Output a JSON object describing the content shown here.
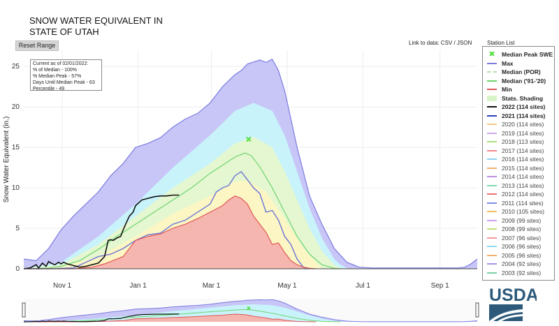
{
  "title": {
    "line1": "SNOW WATER EQUIVALENT IN",
    "line2": "STATE OF UTAH"
  },
  "controls": {
    "reset_label": "Reset Range",
    "link_label": "Link to data: CSV / JSON",
    "station_list_label": "Station List"
  },
  "info": {
    "line1": "Current as of 02/01/2022:",
    "line2": "% of Median - 100%",
    "line3": "% Median Peak - 57%",
    "line4": "Days Until Median Peak - 63",
    "line5": "Percentile - 49"
  },
  "logo": {
    "text": "USDA"
  },
  "colors": {
    "max": "#7b7be0",
    "max_fill": "#c8c6f7",
    "median": "#6fd46f",
    "median_por": "#aee0ae",
    "min": "#e05757",
    "min_fill": "#f6b6b0",
    "y2022": "#111111",
    "y2021": "#2b3fb8",
    "peak_marker": "#55dd44",
    "cyan_fill": "#c9f3fb",
    "green_fill": "#e4f7d0",
    "yellow_fill": "#fcf6c4"
  },
  "legend": [
    {
      "label": "Median Peak SWE",
      "color": "#55dd44",
      "kind": "marker"
    },
    {
      "label": "Max",
      "color": "#7b7be0",
      "kind": "line"
    },
    {
      "label": "Median (POR)",
      "color": "#aee0ae",
      "kind": "dash"
    },
    {
      "label": "Median ('91-'20)",
      "color": "#6fd46f",
      "kind": "line"
    },
    {
      "label": "Min",
      "color": "#e05757",
      "kind": "line"
    },
    {
      "label": "Stats. Shading",
      "color": "#d8f3c8",
      "kind": "band"
    },
    {
      "label": "2022 (114 sites)",
      "color": "#111111",
      "kind": "line"
    },
    {
      "label": "2021 (114 sites)",
      "color": "#2b3fb8",
      "kind": "line"
    },
    {
      "label": "2020 (114 sites)",
      "color": "#f5c78a",
      "kind": "line"
    },
    {
      "label": "2019 (114 sites)",
      "color": "#c8a6e8",
      "kind": "line"
    },
    {
      "label": "2018 (113 sites)",
      "color": "#a8e07a",
      "kind": "line"
    },
    {
      "label": "2017 (114 sites)",
      "color": "#f08a8a",
      "kind": "line"
    },
    {
      "label": "2016 (114 sites)",
      "color": "#8ed0f0",
      "kind": "line"
    },
    {
      "label": "2015 (114 sites)",
      "color": "#f2b06a",
      "kind": "line"
    },
    {
      "label": "2014 (114 sites)",
      "color": "#b98ee0",
      "kind": "line"
    },
    {
      "label": "2013 (114 sites)",
      "color": "#7ed6b0",
      "kind": "line"
    },
    {
      "label": "2012 (114 sites)",
      "color": "#e87070",
      "kind": "line"
    },
    {
      "label": "2011 (114 sites)",
      "color": "#7a8ee0",
      "kind": "line"
    },
    {
      "label": "2010 (105 sites)",
      "color": "#f0c060",
      "kind": "line"
    },
    {
      "label": "2009 (99 sites)",
      "color": "#d0a0f0",
      "kind": "line"
    },
    {
      "label": "2008 (99 sites)",
      "color": "#c0e070",
      "kind": "line"
    },
    {
      "label": "2007 (96 sites)",
      "color": "#f29a9a",
      "kind": "line"
    },
    {
      "label": "2006 (96 sites)",
      "color": "#8fdaf2",
      "kind": "line"
    },
    {
      "label": "2005 (96 sites)",
      "color": "#f0b070",
      "kind": "line"
    },
    {
      "label": "2004 (92 sites)",
      "color": "#a890e8",
      "kind": "line"
    },
    {
      "label": "2003 (92 sites)",
      "color": "#7cd0a8",
      "kind": "line"
    }
  ],
  "chart_data": {
    "type": "area",
    "title": "SNOW WATER EQUIVALENT IN STATE OF UTAH",
    "xlabel": "",
    "ylabel": "Snow Water Equivalent (in.)",
    "x_unit": "days since Oct 1",
    "xlim": [
      0,
      365
    ],
    "ylim": [
      0,
      27
    ],
    "yticks": [
      0,
      5,
      10,
      15,
      20,
      25
    ],
    "xticks": [
      {
        "x": 31,
        "label": "Nov 1"
      },
      {
        "x": 92,
        "label": "Jan 1"
      },
      {
        "x": 151,
        "label": "Mar 1"
      },
      {
        "x": 212,
        "label": "May 1"
      },
      {
        "x": 273,
        "label": "Jul 1"
      },
      {
        "x": 335,
        "label": "Sep 1"
      }
    ],
    "median_peak": {
      "x": 181,
      "y": 16
    },
    "series": [
      {
        "name": "Max",
        "x": [
          0,
          10,
          20,
          30,
          40,
          50,
          60,
          70,
          80,
          90,
          100,
          110,
          120,
          130,
          140,
          150,
          160,
          170,
          175,
          180,
          190,
          195,
          200,
          205,
          210,
          215,
          220,
          225,
          230,
          240,
          250,
          260,
          270,
          280,
          290,
          300,
          330,
          350,
          355,
          360,
          365
        ],
        "y": [
          1.2,
          1.0,
          2.5,
          4.8,
          6.5,
          8.0,
          9.5,
          11.5,
          13.0,
          15.0,
          15.5,
          16.2,
          17.5,
          18.5,
          19.2,
          20.5,
          22.5,
          24.0,
          24.5,
          25.3,
          25.8,
          25.5,
          25.9,
          24.5,
          22.0,
          18.5,
          15.0,
          12.0,
          9.0,
          5.5,
          2.5,
          0.8,
          0.2,
          0.1,
          0.1,
          0.1,
          0.1,
          0.1,
          0.2,
          0.6,
          1.2
        ]
      },
      {
        "name": "Stats 90th",
        "x": [
          0,
          30,
          60,
          90,
          120,
          150,
          170,
          185,
          200,
          210,
          220,
          230,
          240,
          250,
          255,
          260
        ],
        "y": [
          0.1,
          0.8,
          4.0,
          8.0,
          12.5,
          16.5,
          19.5,
          20.5,
          19.5,
          16.5,
          12.0,
          7.5,
          3.8,
          1.2,
          0.5,
          0.1
        ]
      },
      {
        "name": "Stats 70th",
        "x": [
          0,
          30,
          60,
          90,
          120,
          150,
          170,
          185,
          200,
          210,
          220,
          230,
          240,
          250,
          255
        ],
        "y": [
          0.05,
          0.5,
          3.0,
          6.5,
          10.0,
          13.0,
          15.5,
          16.3,
          15.0,
          12.0,
          8.5,
          5.0,
          2.2,
          0.5,
          0.1
        ]
      },
      {
        "name": "Median ('91-'20)",
        "x": [
          0,
          20,
          30,
          45,
          60,
          75,
          90,
          105,
          120,
          135,
          150,
          160,
          170,
          178,
          183,
          190,
          200,
          210,
          220,
          230,
          240,
          250,
          255
        ],
        "y": [
          0,
          0.1,
          0.3,
          1.0,
          2.4,
          4.0,
          5.5,
          7.0,
          8.5,
          10.0,
          11.8,
          12.8,
          13.8,
          14.3,
          14.0,
          12.6,
          10.0,
          7.0,
          4.0,
          1.8,
          0.5,
          0.05,
          0
        ]
      },
      {
        "name": "Stats 30th",
        "x": [
          0,
          30,
          60,
          90,
          120,
          150,
          170,
          180,
          195,
          210,
          225,
          240
        ],
        "y": [
          0,
          0.2,
          1.5,
          4.0,
          6.8,
          9.0,
          10.8,
          10.9,
          9.5,
          6.2,
          2.5,
          0
        ]
      },
      {
        "name": "2021 (114 sites)",
        "x": [
          0,
          20,
          40,
          60,
          70,
          80,
          90,
          100,
          110,
          120,
          130,
          140,
          150,
          155,
          160,
          165,
          170,
          175,
          180,
          185,
          190,
          195,
          200,
          205,
          210,
          215,
          220,
          225,
          228
        ],
        "y": [
          0,
          0,
          0.1,
          1.5,
          1.8,
          2.5,
          3.5,
          4.2,
          4.4,
          5.5,
          6.0,
          7.0,
          8.0,
          9.5,
          10.0,
          10.3,
          11.5,
          12.0,
          11.0,
          10.0,
          9.3,
          7.0,
          7.2,
          6.0,
          4.0,
          3.0,
          1.2,
          0.2,
          0
        ]
      },
      {
        "name": "Min",
        "x": [
          0,
          40,
          55,
          65,
          80,
          90,
          100,
          110,
          120,
          130,
          140,
          150,
          160,
          165,
          170,
          175,
          180,
          185,
          190,
          195,
          200,
          205,
          210,
          215,
          220,
          225,
          230,
          235
        ],
        "y": [
          0,
          0,
          0.2,
          0.6,
          1.5,
          3.5,
          4.0,
          4.3,
          5.0,
          5.5,
          6.2,
          7.0,
          7.8,
          8.5,
          9.0,
          8.7,
          8.0,
          6.5,
          5.5,
          4.5,
          3.0,
          3.2,
          2.0,
          1.0,
          0.5,
          0.2,
          0.05,
          0
        ]
      },
      {
        "name": "2022 (114 sites)",
        "x": [
          0,
          5,
          10,
          12,
          15,
          18,
          20,
          22,
          25,
          28,
          30,
          32,
          35,
          40,
          45,
          50,
          55,
          60,
          65,
          68,
          70,
          72,
          75,
          78,
          80,
          82,
          85,
          88,
          90,
          95,
          100,
          105,
          110,
          115,
          120,
          125
        ],
        "y": [
          0,
          0.1,
          0.5,
          0.1,
          0.7,
          0.3,
          0.9,
          0.7,
          0.5,
          0.8,
          0.6,
          0.8,
          0.6,
          0.4,
          0.2,
          0.3,
          0.5,
          0.7,
          1.5,
          3.5,
          3.6,
          3.5,
          3.8,
          4.0,
          4.8,
          5.5,
          6.5,
          7.0,
          7.8,
          8.5,
          8.7,
          8.9,
          9.0,
          9.0,
          9.1,
          9.1
        ]
      }
    ]
  }
}
